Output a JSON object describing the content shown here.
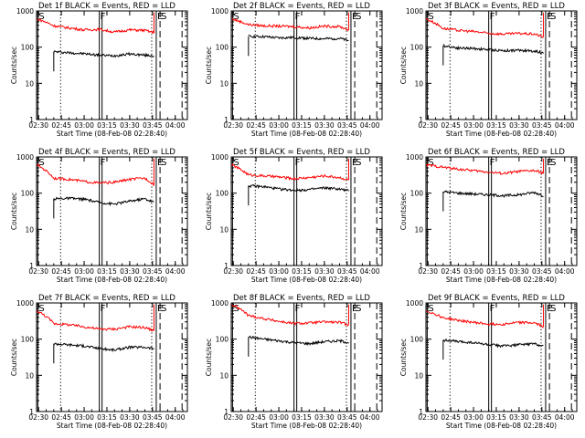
{
  "chart_data": {
    "type": "line",
    "layout": "3x3 grid",
    "xlabel": "Start Time (08-Feb-08 02:28:40)",
    "ylabel": "Counts/sec",
    "y_scale": "log",
    "ylim": [
      1,
      1000
    ],
    "ytick_labels": [
      "1",
      "10",
      "100",
      "1000"
    ],
    "xlim": [
      "02:28:40",
      "04:08:00"
    ],
    "xtick_labels": [
      "02:30",
      "02:45",
      "03:00",
      "03:15",
      "03:30",
      "03:45",
      "04:00"
    ],
    "series_colors": {
      "events": "#000000",
      "lld": "#ff0000"
    },
    "markers": [
      {
        "label": "S",
        "time": "02:29:30",
        "style": "solid"
      },
      {
        "label": "",
        "time": "02:44:30",
        "style": "dotted"
      },
      {
        "label": "F",
        "time": "03:10:00",
        "style": "solid-double"
      },
      {
        "label": "",
        "time": "03:44:30",
        "style": "dotted"
      },
      {
        "label": "E",
        "time": "03:47:30",
        "style": "solid"
      },
      {
        "label": "S",
        "time": "03:50:00",
        "style": "long-dash"
      },
      {
        "label": "",
        "time": "04:04:30",
        "style": "long-dash"
      }
    ],
    "panels": [
      {
        "title": "Det 1f BLACK = Events, RED = LLD",
        "events": {
          "x": [
            "02:40",
            "02:50",
            "03:00",
            "03:10",
            "03:20",
            "03:30",
            "03:40",
            "03:46"
          ],
          "y": [
            75,
            70,
            66,
            60,
            58,
            65,
            60,
            58
          ]
        },
        "lld": {
          "x": [
            "02:29",
            "02:40",
            "02:50",
            "03:00",
            "03:10",
            "03:20",
            "03:30",
            "03:40",
            "03:46"
          ],
          "y": [
            600,
            390,
            340,
            300,
            310,
            260,
            300,
            290,
            250
          ]
        }
      },
      {
        "title": "Det 2f BLACK = Events, RED = LLD",
        "events": {
          "x": [
            "02:40",
            "02:50",
            "03:00",
            "03:10",
            "03:20",
            "03:30",
            "03:40",
            "03:46"
          ],
          "y": [
            200,
            195,
            180,
            185,
            175,
            170,
            175,
            150
          ]
        },
        "lld": {
          "x": [
            "02:29",
            "02:40",
            "02:50",
            "03:00",
            "03:10",
            "03:20",
            "03:30",
            "03:40",
            "03:46"
          ],
          "y": [
            600,
            420,
            390,
            380,
            370,
            340,
            380,
            370,
            300
          ]
        }
      },
      {
        "title": "Det 3f BLACK = Events, RED = LLD",
        "events": {
          "x": [
            "02:40",
            "02:50",
            "03:00",
            "03:10",
            "03:20",
            "03:30",
            "03:40",
            "03:46"
          ],
          "y": [
            110,
            95,
            92,
            85,
            80,
            82,
            78,
            70
          ]
        },
        "lld": {
          "x": [
            "02:29",
            "02:40",
            "02:50",
            "03:00",
            "03:10",
            "03:20",
            "03:30",
            "03:40",
            "03:46"
          ],
          "y": [
            600,
            330,
            290,
            270,
            240,
            230,
            240,
            230,
            190
          ]
        }
      },
      {
        "title": "Det 4f BLACK = Events, RED = LLD",
        "events": {
          "x": [
            "02:40",
            "02:50",
            "03:00",
            "03:10",
            "03:20",
            "03:30",
            "03:40",
            "03:46"
          ],
          "y": [
            70,
            72,
            68,
            55,
            50,
            60,
            70,
            55
          ]
        },
        "lld": {
          "x": [
            "02:29",
            "02:40",
            "02:50",
            "03:00",
            "03:10",
            "03:20",
            "03:30",
            "03:40",
            "03:46"
          ],
          "y": [
            600,
            260,
            240,
            210,
            190,
            200,
            240,
            260,
            170
          ]
        }
      },
      {
        "title": "Det 5f BLACK = Events, RED = LLD",
        "events": {
          "x": [
            "02:40",
            "02:50",
            "03:00",
            "03:10",
            "03:20",
            "03:30",
            "03:40",
            "03:46"
          ],
          "y": [
            160,
            150,
            130,
            120,
            125,
            140,
            130,
            115
          ]
        },
        "lld": {
          "x": [
            "02:29",
            "02:40",
            "02:50",
            "03:00",
            "03:10",
            "03:20",
            "03:30",
            "03:40",
            "03:46"
          ],
          "y": [
            600,
            320,
            300,
            280,
            250,
            270,
            300,
            270,
            230
          ]
        }
      },
      {
        "title": "Det 6f BLACK = Events, RED = LLD",
        "events": {
          "x": [
            "02:40",
            "02:50",
            "03:00",
            "03:10",
            "03:20",
            "03:30",
            "03:40",
            "03:46"
          ],
          "y": [
            110,
            100,
            95,
            90,
            85,
            90,
            105,
            85
          ]
        },
        "lld": {
          "x": [
            "02:29",
            "02:40",
            "02:50",
            "03:00",
            "03:10",
            "03:20",
            "03:30",
            "03:40",
            "03:46"
          ],
          "y": [
            600,
            520,
            460,
            420,
            380,
            350,
            400,
            420,
            360
          ]
        }
      },
      {
        "title": "Det 7f BLACK = Events, RED = LLD",
        "events": {
          "x": [
            "02:40",
            "02:50",
            "03:00",
            "03:10",
            "03:20",
            "03:30",
            "03:40",
            "03:46"
          ],
          "y": [
            75,
            70,
            65,
            55,
            50,
            60,
            60,
            55
          ]
        },
        "lld": {
          "x": [
            "02:29",
            "02:40",
            "02:50",
            "03:00",
            "03:10",
            "03:20",
            "03:30",
            "03:40",
            "03:46"
          ],
          "y": [
            600,
            270,
            250,
            220,
            190,
            190,
            220,
            210,
            170
          ]
        }
      },
      {
        "title": "Det 8f BLACK = Events, RED = LLD",
        "events": {
          "x": [
            "02:40",
            "02:50",
            "03:00",
            "03:10",
            "03:20",
            "03:30",
            "03:40",
            "03:46"
          ],
          "y": [
            115,
            100,
            90,
            80,
            75,
            85,
            90,
            80
          ]
        },
        "lld": {
          "x": [
            "02:29",
            "02:40",
            "02:50",
            "03:00",
            "03:10",
            "03:20",
            "03:30",
            "03:40",
            "03:46"
          ],
          "y": [
            900,
            450,
            370,
            310,
            270,
            280,
            300,
            290,
            250
          ]
        }
      },
      {
        "title": "Det 9f BLACK = Events, RED = LLD",
        "events": {
          "x": [
            "02:40",
            "02:50",
            "03:00",
            "03:10",
            "03:20",
            "03:30",
            "03:40",
            "03:46"
          ],
          "y": [
            95,
            85,
            80,
            70,
            65,
            70,
            75,
            65
          ]
        },
        "lld": {
          "x": [
            "02:29",
            "02:40",
            "02:50",
            "03:00",
            "03:10",
            "03:20",
            "03:30",
            "03:40",
            "03:46"
          ],
          "y": [
            600,
            390,
            330,
            290,
            260,
            260,
            290,
            280,
            220
          ]
        }
      }
    ]
  }
}
